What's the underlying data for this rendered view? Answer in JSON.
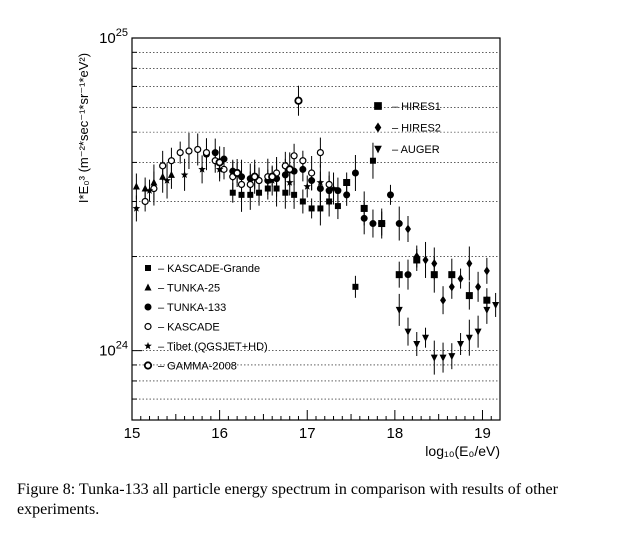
{
  "chart_data": {
    "type": "scatter",
    "xlabel": "log₁₀(E₀/eV)",
    "ylabel": "I*E₀³ (m⁻²*sec⁻¹*sr⁻¹*eV²)",
    "x_ticks": [
      15,
      16,
      17,
      18,
      19
    ],
    "y_ticks": [
      {
        "value": 1e+24,
        "label_base": "10",
        "label_exp": "24"
      },
      {
        "value": 1e+25,
        "label_base": "10",
        "label_exp": "25"
      }
    ],
    "xlim": [
      15,
      19.2
    ],
    "ylim": [
      6e+23,
      1e+25
    ],
    "y_scale": "log",
    "grid": "dotted horizontal",
    "legend_left_placement": "bottom-left",
    "legend_right_placement": "top-right",
    "series": [
      {
        "name": "KASCADE-Grande",
        "marker": "square",
        "points": [
          [
            16.15,
            3.2e+24
          ],
          [
            16.25,
            3.15e+24
          ],
          [
            16.35,
            3.15e+24
          ],
          [
            16.45,
            3.2e+24
          ],
          [
            16.55,
            3.3e+24
          ],
          [
            16.65,
            3.3e+24
          ],
          [
            16.75,
            3.2e+24
          ],
          [
            16.85,
            3.15e+24
          ],
          [
            16.95,
            3e+24
          ],
          [
            17.05,
            2.85e+24
          ],
          [
            17.15,
            2.85e+24
          ],
          [
            17.25,
            3e+24
          ],
          [
            17.35,
            2.9e+24
          ],
          [
            17.55,
            1.6e+24
          ],
          [
            17.75,
            4.05e+24
          ]
        ]
      },
      {
        "name": "TUNKA-25",
        "marker": "triangle-up",
        "points": [
          [
            15.05,
            3.35e+24
          ],
          [
            15.15,
            3.3e+24
          ],
          [
            15.25,
            3.45e+24
          ],
          [
            15.35,
            3.6e+24
          ],
          [
            15.45,
            3.65e+24
          ]
        ]
      },
      {
        "name": "TUNKA-133",
        "marker": "circle",
        "points": [
          [
            15.85,
            4.25e+24
          ],
          [
            15.95,
            4.3e+24
          ],
          [
            16.05,
            4.1e+24
          ],
          [
            16.15,
            3.75e+24
          ],
          [
            16.25,
            3.6e+24
          ],
          [
            16.35,
            3.55e+24
          ],
          [
            16.45,
            3.5e+24
          ],
          [
            16.55,
            3.5e+24
          ],
          [
            16.65,
            3.55e+24
          ],
          [
            16.75,
            3.65e+24
          ],
          [
            16.85,
            3.75e+24
          ],
          [
            16.95,
            3.8e+24
          ],
          [
            17.05,
            3.5e+24
          ],
          [
            17.15,
            3.3e+24
          ],
          [
            17.25,
            3.25e+24
          ],
          [
            17.35,
            3.25e+24
          ],
          [
            17.45,
            3.15e+24
          ],
          [
            17.55,
            3.7e+24
          ],
          [
            17.65,
            2.65e+24
          ],
          [
            17.75,
            2.55e+24
          ],
          [
            17.85,
            2.55e+24
          ],
          [
            17.95,
            3.15e+24
          ],
          [
            18.05,
            2.55e+24
          ],
          [
            18.15,
            1.75e+24
          ]
        ]
      },
      {
        "name": "KASCADE",
        "marker": "circle-open",
        "points": [
          [
            15.15,
            3e+24
          ],
          [
            15.25,
            3.3e+24
          ],
          [
            15.35,
            3.9e+24
          ],
          [
            15.45,
            4.05e+24
          ],
          [
            15.55,
            4.3e+24
          ],
          [
            15.65,
            4.35e+24
          ],
          [
            15.75,
            4.4e+24
          ],
          [
            15.85,
            4.3e+24
          ],
          [
            15.95,
            4.05e+24
          ],
          [
            16.05,
            3.8e+24
          ],
          [
            16.15,
            3.6e+24
          ],
          [
            16.25,
            3.4e+24
          ],
          [
            16.35,
            3.4e+24
          ],
          [
            16.45,
            3.5e+24
          ],
          [
            16.55,
            3.6e+24
          ],
          [
            16.65,
            3.7e+24
          ],
          [
            16.75,
            3.9e+24
          ],
          [
            16.85,
            4.2e+24
          ],
          [
            16.95,
            4.05e+24
          ],
          [
            17.05,
            3.7e+24
          ],
          [
            17.15,
            4.3e+24
          ],
          [
            17.25,
            3.4e+24
          ]
        ]
      },
      {
        "name": "Tibet (QGSJET+HD)",
        "marker": "star",
        "points": [
          [
            15.05,
            2.85e+24
          ],
          [
            15.2,
            3.25e+24
          ],
          [
            15.4,
            3.5e+24
          ],
          [
            15.6,
            3.65e+24
          ],
          [
            15.8,
            3.8e+24
          ],
          [
            16.0,
            3.8e+24
          ],
          [
            16.2,
            3.7e+24
          ],
          [
            16.4,
            3.6e+24
          ],
          [
            16.6,
            3.5e+24
          ],
          [
            16.8,
            3.45e+24
          ],
          [
            17.0,
            3.35e+24
          ],
          [
            17.15,
            3.45e+24
          ],
          [
            17.3,
            3.3e+24
          ]
        ]
      },
      {
        "name": "GAMMA-2008",
        "marker": "circle-ring",
        "points": [
          [
            16.0,
            4e+24
          ],
          [
            16.2,
            3.7e+24
          ],
          [
            16.4,
            3.6e+24
          ],
          [
            16.6,
            3.6e+24
          ],
          [
            16.8,
            3.8e+24
          ],
          [
            16.9,
            6.3e+24
          ]
        ]
      },
      {
        "name": "HIRES1",
        "marker": "square-large",
        "points": [
          [
            17.45,
            3.45e+24
          ],
          [
            17.65,
            2.85e+24
          ],
          [
            17.85,
            2.55e+24
          ],
          [
            18.05,
            1.75e+24
          ],
          [
            18.25,
            1.95e+24
          ],
          [
            18.45,
            1.75e+24
          ],
          [
            18.65,
            1.75e+24
          ],
          [
            18.85,
            1.5e+24
          ],
          [
            19.05,
            1.45e+24
          ]
        ]
      },
      {
        "name": "HIRES2",
        "marker": "diamond",
        "points": [
          [
            18.15,
            2.45e+24
          ],
          [
            18.25,
            2e+24
          ],
          [
            18.35,
            1.95e+24
          ],
          [
            18.45,
            1.9e+24
          ],
          [
            18.55,
            1.45e+24
          ],
          [
            18.65,
            1.6e+24
          ],
          [
            18.75,
            1.7e+24
          ],
          [
            18.85,
            1.9e+24
          ],
          [
            18.95,
            1.6e+24
          ],
          [
            19.05,
            1.8e+24
          ]
        ]
      },
      {
        "name": "AUGER",
        "marker": "triangle-down",
        "points": [
          [
            18.05,
            1.35e+24
          ],
          [
            18.15,
            1.15e+24
          ],
          [
            18.25,
            1.05e+24
          ],
          [
            18.35,
            1.1e+24
          ],
          [
            18.45,
            9.5e+23
          ],
          [
            18.55,
            9.5e+23
          ],
          [
            18.65,
            9.6e+23
          ],
          [
            18.75,
            1.05e+24
          ],
          [
            18.85,
            1.1e+24
          ],
          [
            18.95,
            1.15e+24
          ],
          [
            19.05,
            1.35e+24
          ],
          [
            19.15,
            1.4e+24
          ]
        ]
      }
    ]
  },
  "caption": "Figure 8: Tunka-133 all particle energy spectrum in comparison with results of other experiments."
}
